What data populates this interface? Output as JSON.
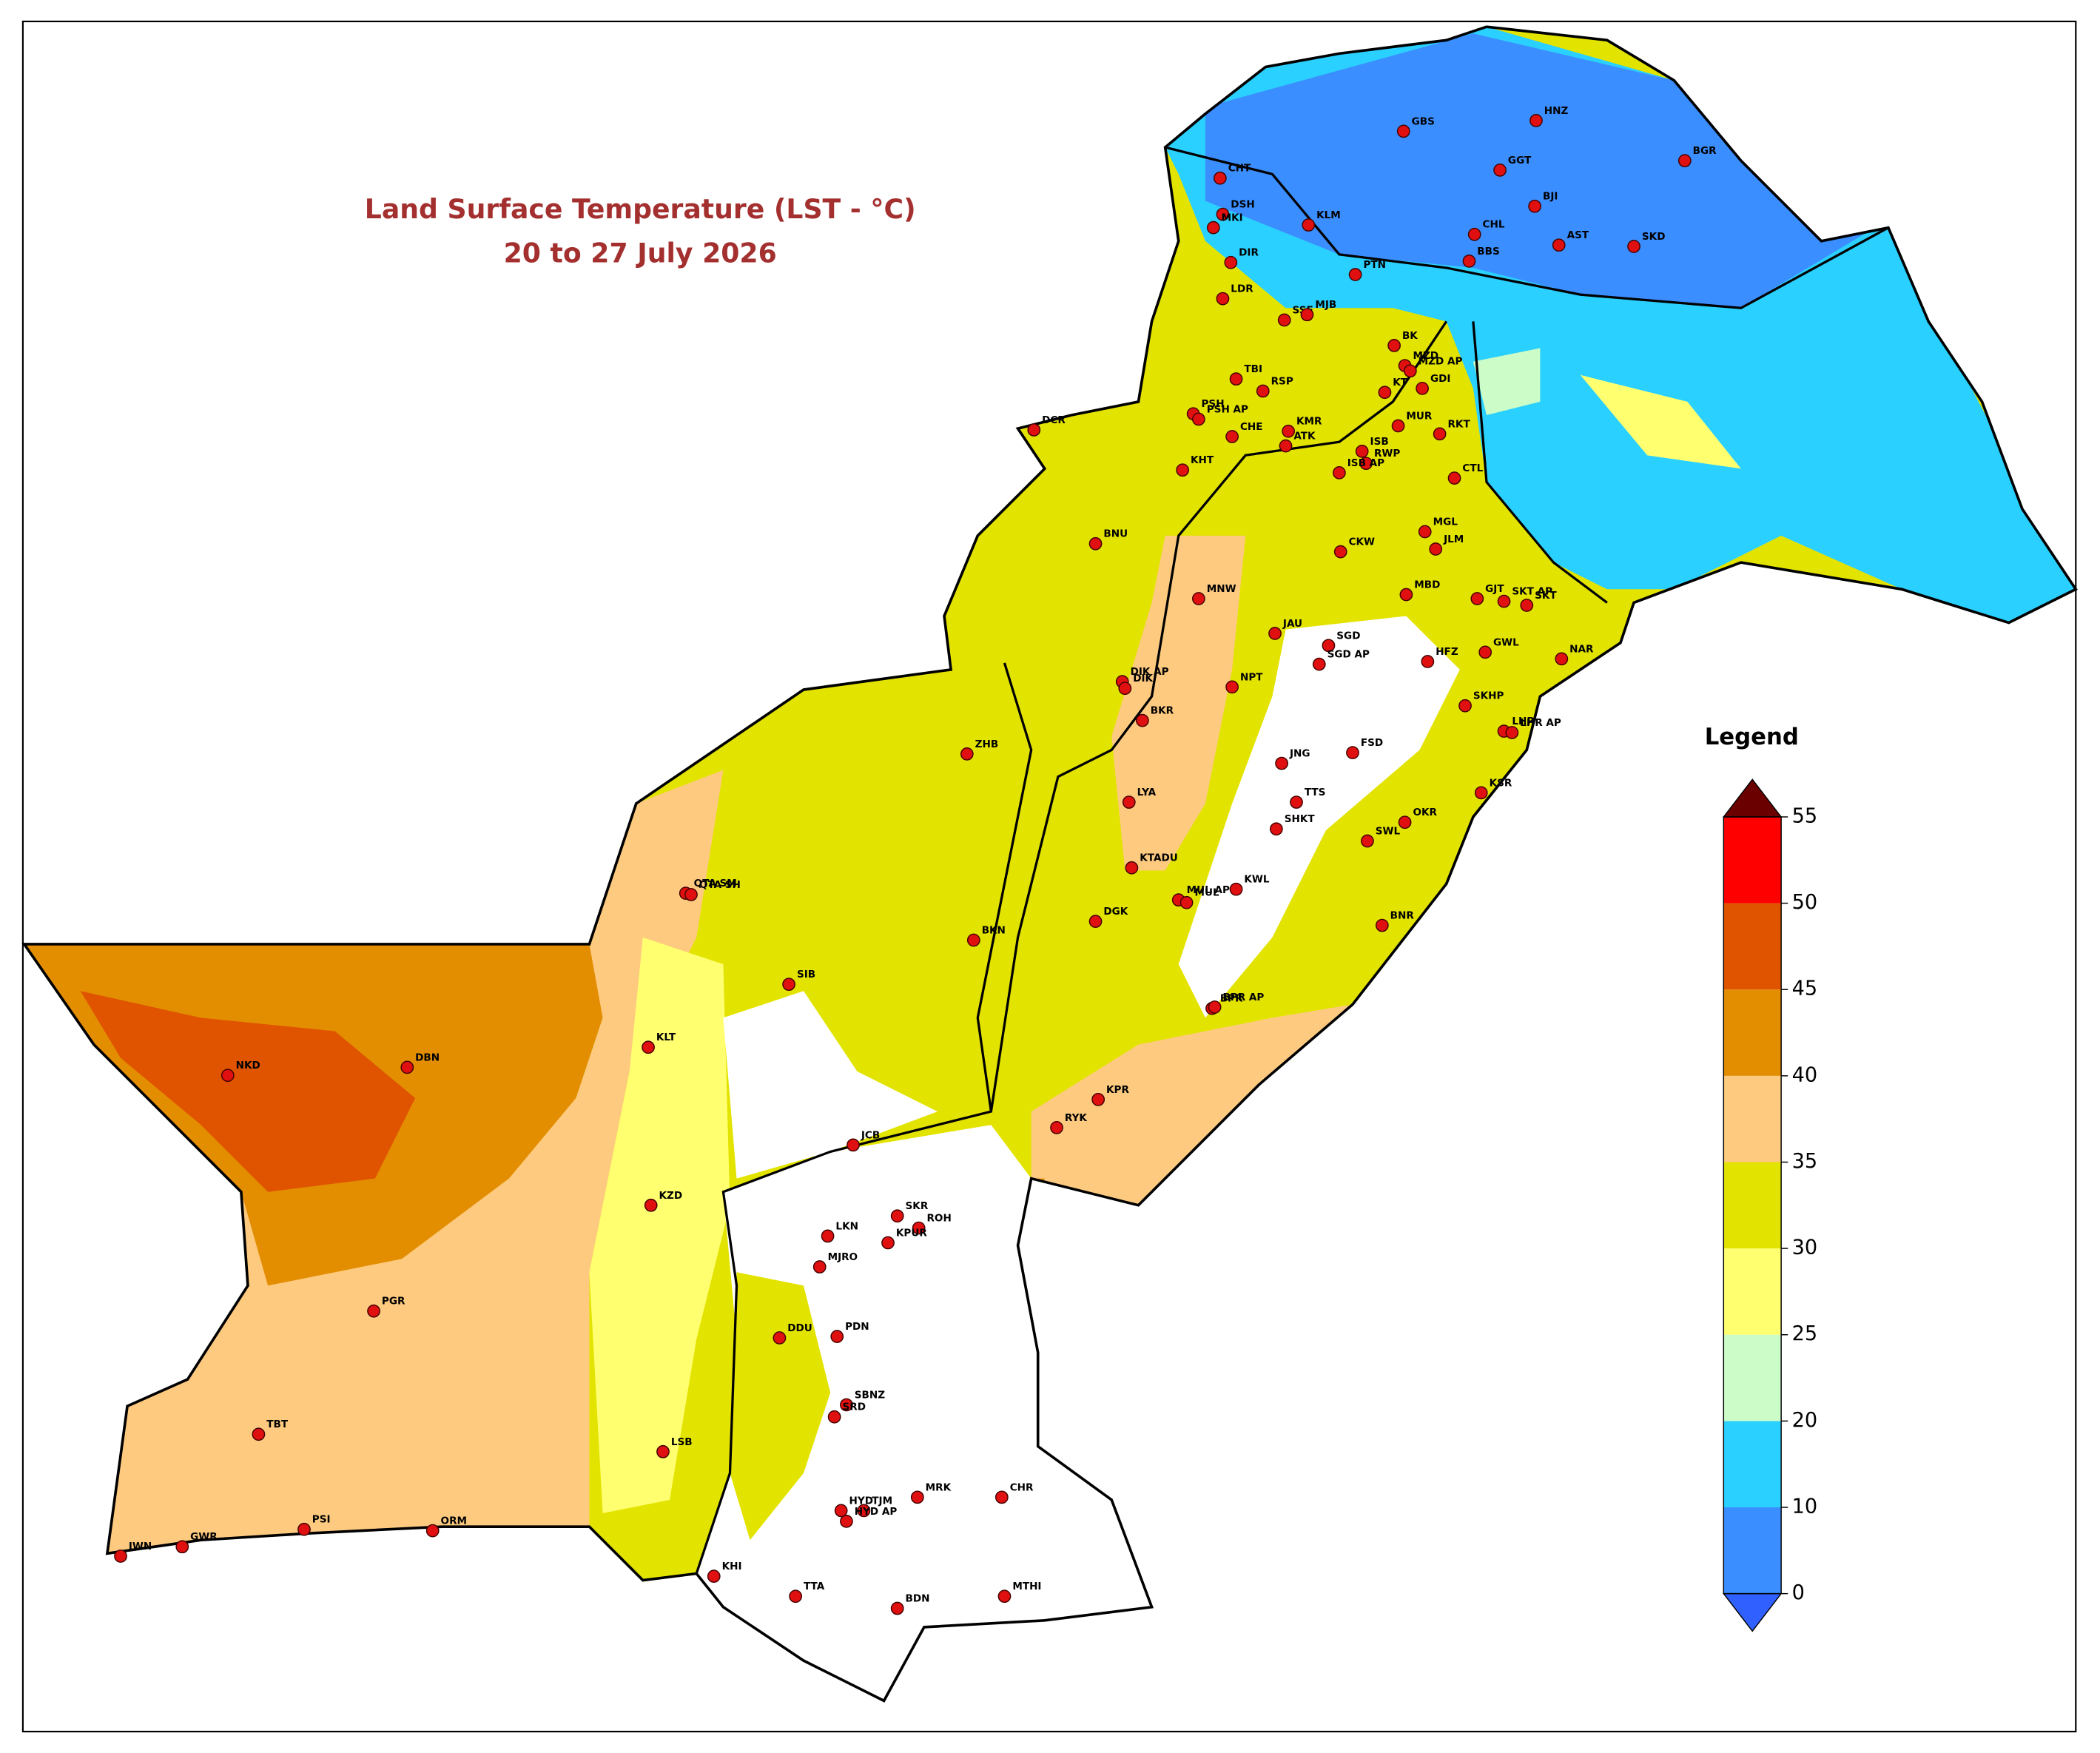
{
  "map": {
    "title": "Land Surface Temperature (LST - °C)",
    "subtitle": "20 to 27 July 2026",
    "stations": [
      "HNZ",
      "GBS",
      "BGR",
      "CHT",
      "GGT",
      "BJI",
      "DSH",
      "MKI",
      "KLM",
      "CHL",
      "AST",
      "SKD",
      "DIR",
      "BBS",
      "PTN",
      "LDR",
      "SSF",
      "MJB",
      "BK",
      "MZD",
      "MZD AP",
      "TBI",
      "PSH",
      "PSH AP",
      "RSP",
      "KT",
      "GDI",
      "DCR",
      "CHE",
      "KMR",
      "ATK",
      "MUR",
      "RKT",
      "ISB",
      "RWP",
      "ISB AP",
      "KHT",
      "CTL",
      "BNU",
      "MGL",
      "JLM",
      "CKW",
      "MNW",
      "MBD",
      "GJT",
      "SKT AP",
      "SKT",
      "JAU",
      "SGD",
      "SGD AP",
      "HFZ",
      "GWL",
      "NAR",
      "DIK AP",
      "DIK",
      "NPT",
      "SKHP",
      "LHR",
      "LHR AP",
      "BKR",
      "ZHB",
      "FSD",
      "JNG",
      "KSR",
      "TTS",
      "LYA",
      "SHKT",
      "OKR",
      "SWL",
      "KTADU",
      "QTA SM",
      "QTA SH",
      "MUL AP",
      "MUL",
      "KWL",
      "DGK",
      "BNR",
      "BKN",
      "SIB",
      "BPR",
      "BPR AP",
      "KLT",
      "NKD",
      "DBN",
      "KPR",
      "RYK",
      "JCB",
      "KZD",
      "SKR",
      "ROH",
      "LKN",
      "KPUR",
      "MJRO",
      "PGR",
      "DDU",
      "PDN",
      "SBNZ",
      "SRD",
      "TBT",
      "LSB",
      "CHR",
      "MRK",
      "TJM",
      "HYD",
      "HYD AP",
      "JWN",
      "GWR",
      "PSI",
      "ORM",
      "KHI",
      "TTA",
      "BDN",
      "MTHI"
    ],
    "legend": {
      "title": "Legend",
      "boundaries": [
        0,
        10,
        20,
        25,
        30,
        35,
        40,
        45,
        50,
        55
      ],
      "colors": [
        "#3b8eff",
        "#2ad0ff",
        "#ccfcc8",
        "#ffff70",
        "#e3e300",
        "#fdca80",
        "#e38e00",
        "#e05400",
        "#ff0000"
      ],
      "under_color": "#3060ff",
      "over_color": "#6b0000"
    }
  }
}
